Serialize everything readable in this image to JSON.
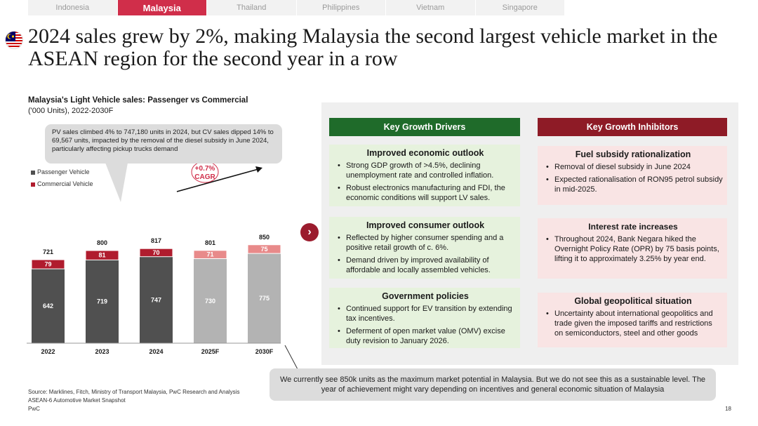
{
  "tabs": [
    {
      "label": "Indonesia",
      "active": false
    },
    {
      "label": "Malaysia",
      "active": true
    },
    {
      "label": "Thailand",
      "active": false
    },
    {
      "label": "Philippines",
      "active": false
    },
    {
      "label": "Vietnam",
      "active": false
    },
    {
      "label": "Singapore",
      "active": false
    }
  ],
  "headline": "2024 sales grew by 2%, making Malaysia the second largest vehicle market in the ASEAN region for the second year in a row",
  "callout": "PV sales climbed 4% to 747,180 units in 2024, but CV sales dipped 14% to 69,567 units, impacted by the removal of the diesel subsidy in June 2024, particularly affecting pickup trucks demand",
  "chart_data": {
    "type": "bar",
    "stacked": true,
    "title": "Malaysia's Light Vehicle sales: Passenger vs Commercial",
    "subtitle": "('000 Units), 2022-2030F",
    "categories": [
      "2022",
      "2023",
      "2024",
      "2025F",
      "2030F"
    ],
    "series": [
      {
        "name": "Passenger Vehicle",
        "values": [
          642,
          719,
          747,
          730,
          775
        ],
        "colors": [
          "#505050",
          "#505050",
          "#505050",
          "#b3b3b3",
          "#b3b3b3"
        ]
      },
      {
        "name": "Commercial Vehicle",
        "values": [
          79,
          81,
          70,
          71,
          75
        ],
        "colors": [
          "#b01c2e",
          "#b01c2e",
          "#b01c2e",
          "#e88a8a",
          "#e88a8a"
        ]
      }
    ],
    "totals": [
      721,
      800,
      817,
      801,
      850
    ],
    "cagr_label_line1": "+0.7%",
    "cagr_label_line2": "CAGR",
    "ylim": [
      0,
      900
    ]
  },
  "drivers": {
    "header": "Key Growth Drivers",
    "boxes": [
      {
        "title": "Improved economic outlook",
        "bullets": [
          "Strong GDP growth of >4.5%, declining unemployment rate and controlled inflation.",
          "Robust electronics manufacturing and FDI, the economic conditions will support LV sales."
        ]
      },
      {
        "title": "Improved consumer outlook",
        "bullets": [
          "Reflected by higher consumer spending and a positive retail growth of c. 6%.",
          "Demand driven by improved availability of affordable and locally assembled vehicles."
        ]
      },
      {
        "title": "Government policies",
        "bullets": [
          "Continued support for EV transition by extending tax incentives.",
          "Deferment of open market value (OMV) excise duty revision to January 2026."
        ]
      }
    ]
  },
  "inhibitors": {
    "header": "Key Growth Inhibitors",
    "boxes": [
      {
        "title": "Fuel subsidy rationalization",
        "bullets": [
          "Removal of diesel subsidy in June 2024",
          "Expected rationalisation of RON95 petrol subsidy in mid-2025."
        ]
      },
      {
        "title": "Interest rate increases",
        "bullets": [
          "Throughout 2024, Bank Negara hiked the Overnight Policy Rate (OPR) by 75 basis points, lifting it to approximately 3.25% by year end."
        ]
      },
      {
        "title": "Global geopolitical situation",
        "bullets": [
          "Uncertainty about international geopolitics and trade given the imposed tariffs and restrictions on semiconductors, steel and other goods"
        ]
      }
    ]
  },
  "bottom_note": "We currently see 850k units as the maximum market potential in Malaysia. But we do not see this as a sustainable level. The year of achievement might vary depending on incentives and general economic situation of Malaysia",
  "footer": {
    "source": "Source: Marklines, Fitch, Ministry of Transport Malaysia, PwC Research and Analysis",
    "report": "ASEAN-6 Automotive Market Snapshot",
    "brand": "PwC",
    "page": "18"
  },
  "colors": {
    "accent": "#d02e4a",
    "driver_header": "#1f6b2a",
    "inhibitor_header": "#8e1b26"
  }
}
